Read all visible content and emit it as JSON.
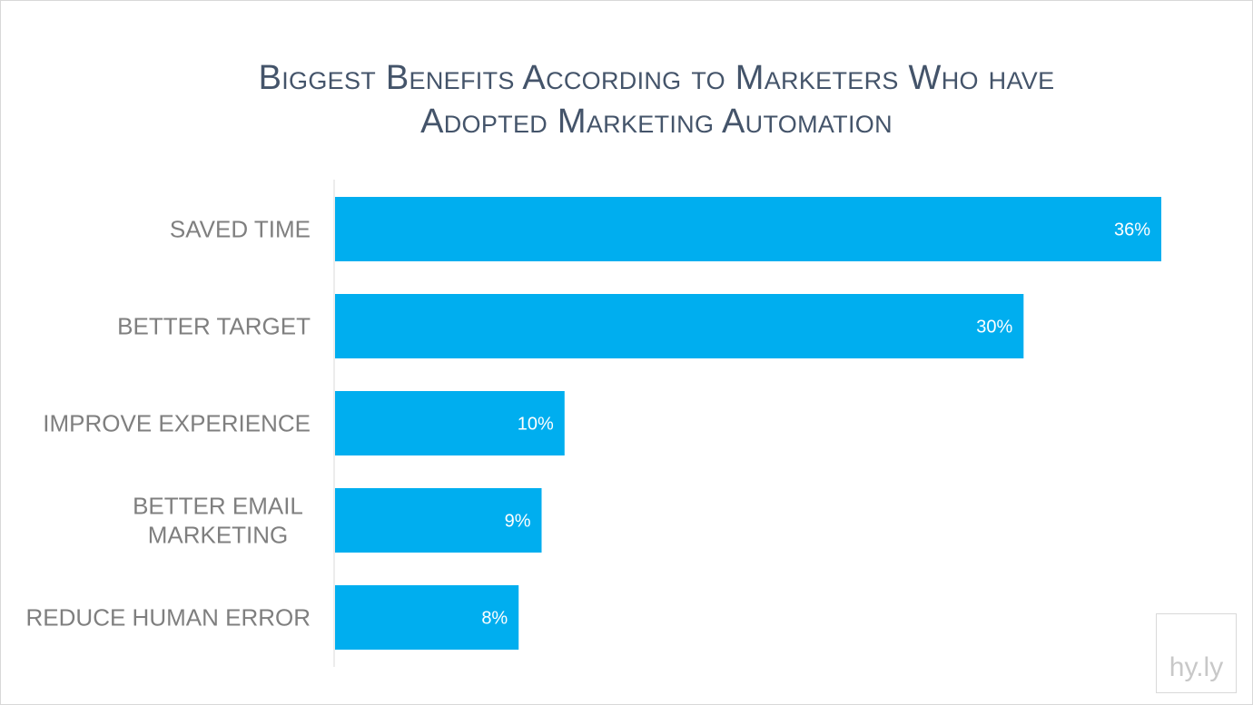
{
  "chart_data": {
    "type": "bar",
    "orientation": "horizontal",
    "title_lines": [
      "Biggest Benefits According to Marketers Who have",
      "Adopted Marketing Automation"
    ],
    "categories": [
      [
        "SAVED TIME"
      ],
      [
        "BETTER TARGET"
      ],
      [
        "IMPROVE EXPERIENCE"
      ],
      [
        "BETTER EMAIL",
        "MARKETING"
      ],
      [
        "REDUCE HUMAN ERROR"
      ]
    ],
    "values": [
      36,
      30,
      10,
      9,
      8
    ],
    "value_labels": [
      "36%",
      "30%",
      "10%",
      "9%",
      "8%"
    ],
    "xlim": [
      0,
      36
    ],
    "bar_color": "#00aeef",
    "axis_color": "#d9d9d9",
    "gridlines": false,
    "legend": "none"
  },
  "logo": {
    "text": "hy.ly"
  }
}
